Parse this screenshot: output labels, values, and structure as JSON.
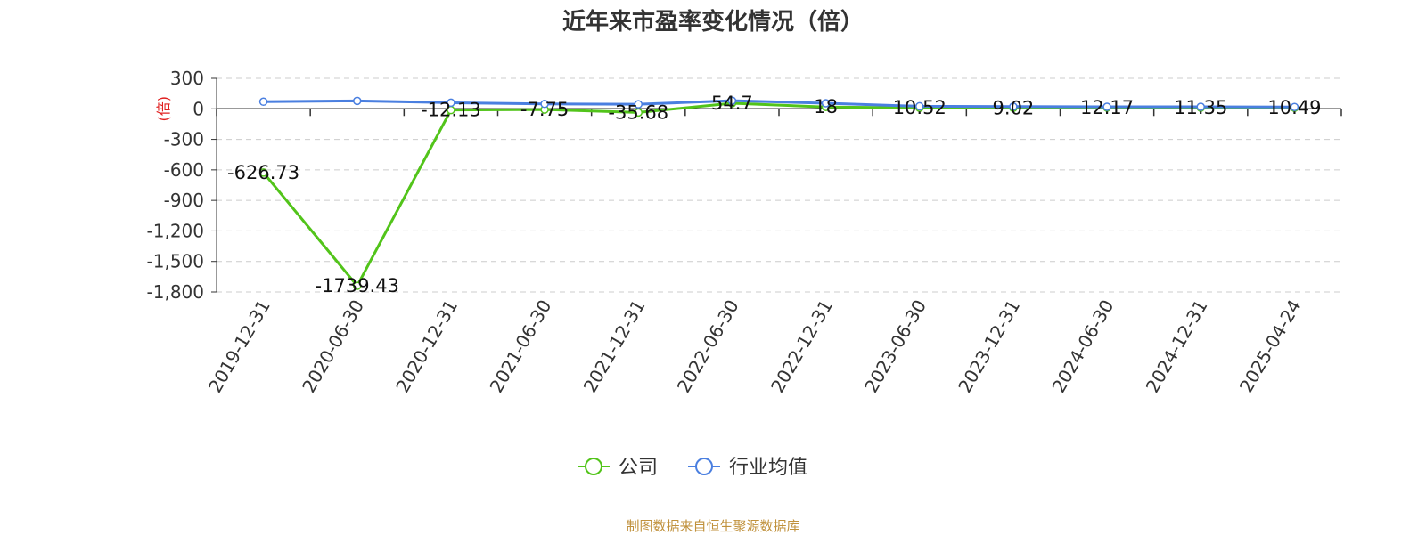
{
  "chart_data": {
    "type": "line",
    "title": "近年来市盈率变化情况（倍）",
    "ylabel": "(倍)",
    "xlabel": "",
    "ylim": [
      -1800,
      300
    ],
    "yticks": [
      300,
      0,
      -300,
      -600,
      -900,
      -1200,
      -1500,
      -1800
    ],
    "ytick_labels": [
      "300",
      "0",
      "-300",
      "-600",
      "-900",
      "-1,200",
      "-1,500",
      "-1,800"
    ],
    "categories": [
      "2019-12-31",
      "2020-06-30",
      "2020-12-31",
      "2021-06-30",
      "2021-12-31",
      "2022-06-30",
      "2022-12-31",
      "2023-06-30",
      "2023-12-31",
      "2024-06-30",
      "2024-12-31",
      "2025-04-24"
    ],
    "grid": true,
    "legend_position": "bottom-center",
    "series": [
      {
        "name": "公司",
        "color": "#52c41a",
        "values": [
          -626.73,
          -1739.43,
          -12.13,
          -7.75,
          -35.68,
          54.7,
          18,
          10.52,
          9.02,
          12.17,
          11.35,
          10.49
        ],
        "data_labels": [
          "-626.73",
          "-1739.43",
          "-12.13",
          "-7.75",
          "-35.68",
          "54.7",
          "18",
          "10.52",
          "9.02",
          "12.17",
          "11.35",
          "10.49"
        ]
      },
      {
        "name": "行业均值",
        "color": "#4a7fe0",
        "values": [
          70,
          78,
          60,
          48,
          45,
          80,
          55,
          25,
          22,
          20,
          20,
          18
        ]
      }
    ]
  },
  "source_note": "制图数据来自恒生聚源数据库"
}
